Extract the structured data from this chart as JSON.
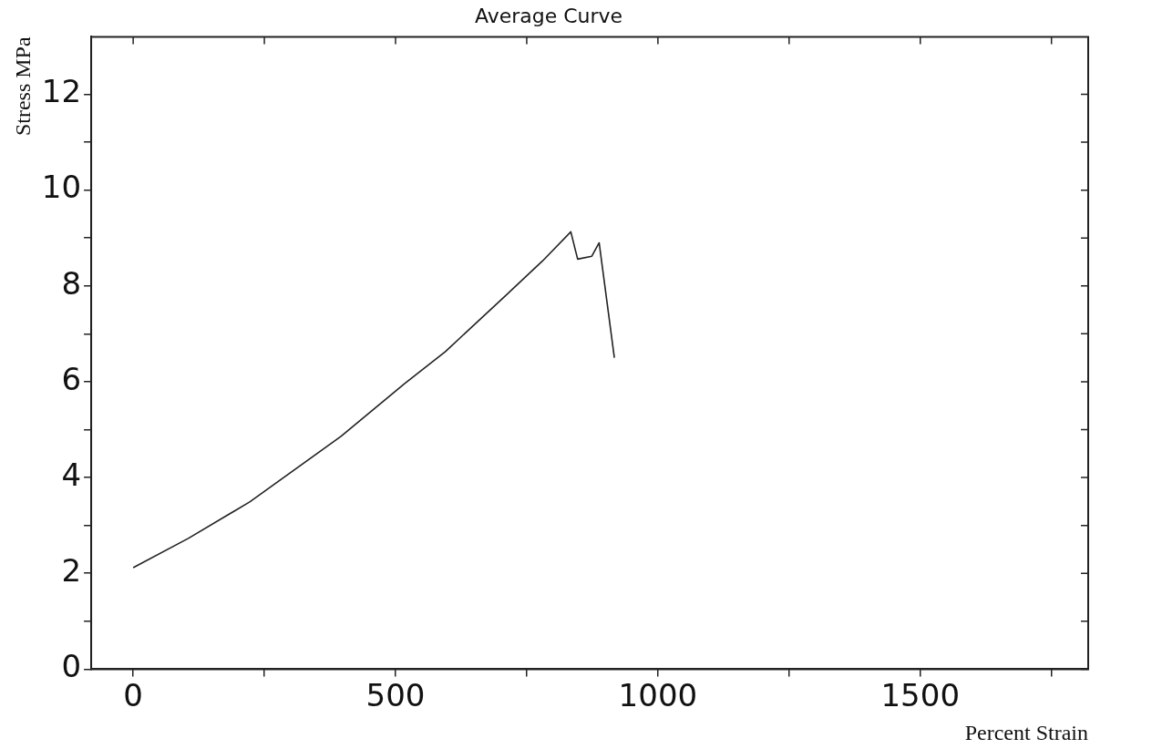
{
  "chart_data": {
    "type": "line",
    "title": "Average Curve",
    "xlabel": "Percent Strain",
    "ylabel": "Stress MPa",
    "marker": "none",
    "line_style": "solid",
    "xlim": [
      -80,
      1820
    ],
    "ylim": [
      0,
      13.2
    ],
    "xticks": [
      0,
      {
        "value": 250,
        "label": null
      },
      500,
      {
        "value": 750,
        "label": null
      },
      1000,
      {
        "value": 1250,
        "label": null
      },
      1500,
      {
        "value": 1750,
        "label": null
      }
    ],
    "yticks": [
      0,
      {
        "value": 1,
        "label": null
      },
      2,
      {
        "value": 3,
        "label": null
      },
      4,
      {
        "value": 5,
        "label": null
      },
      6,
      {
        "value": 7,
        "label": null
      },
      8,
      {
        "value": 9,
        "label": null
      },
      10,
      {
        "value": 11,
        "label": null
      },
      12
    ],
    "series": [
      {
        "color": "#222222",
        "x": [
          0,
          105,
          222,
          396,
          517,
          595,
          708,
          780,
          834,
          847,
          874,
          888,
          917
        ],
        "values": [
          2.12,
          2.73,
          3.49,
          4.86,
          5.96,
          6.63,
          7.78,
          8.52,
          9.13,
          8.56,
          8.62,
          8.9,
          6.5
        ]
      }
    ]
  }
}
